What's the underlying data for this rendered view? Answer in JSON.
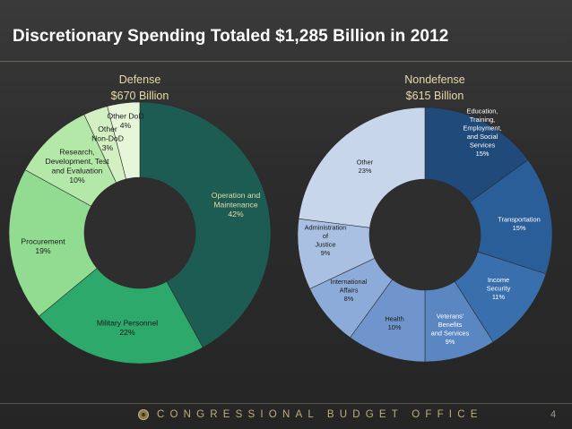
{
  "title": "Discretionary Spending Totaled $1,285 Billion in 2012",
  "footer": {
    "organization": "CONGRESSIONAL BUDGET OFFICE",
    "page_number": "4"
  },
  "colors": {
    "background": "#2b2b2b",
    "title": "#ffffff",
    "heading": "#e8d9a6",
    "footer_text": "#bfae7a"
  },
  "chart_data": [
    {
      "type": "pie",
      "donut": true,
      "heading": [
        "Defense",
        "$670 Billion"
      ],
      "slices": [
        {
          "label": [
            "Operation and",
            "Maintenance"
          ],
          "pct_label": "42%",
          "value": 42,
          "color": "#1d5c52",
          "text_color": "#e8d9a6"
        },
        {
          "label": [
            "Military Personnel"
          ],
          "pct_label": "22%",
          "value": 22,
          "color": "#2da96b",
          "text_color": "#1a1a1a"
        },
        {
          "label": [
            "Procurement"
          ],
          "pct_label": "19%",
          "value": 19,
          "color": "#92dc92",
          "text_color": "#1a1a1a"
        },
        {
          "label": [
            "Research,",
            "Development, Test",
            "and Evaluation"
          ],
          "pct_label": "10%",
          "value": 10,
          "color": "#b4e8a8",
          "text_color": "#1a1a1a"
        },
        {
          "label": [
            "Other",
            "Non-DoD"
          ],
          "pct_label": "3%",
          "value": 3,
          "color": "#d2f0c2",
          "text_color": "#1a1a1a"
        },
        {
          "label": [
            "Other DoD"
          ],
          "pct_label": "4%",
          "value": 4,
          "color": "#e6f6d8",
          "text_color": "#1a1a1a"
        }
      ]
    },
    {
      "type": "pie",
      "donut": true,
      "heading": [
        "Nondefense",
        "$615 Billion"
      ],
      "slices": [
        {
          "label": [
            "Education,",
            "Training,",
            "Employment,",
            "and Social",
            "Services"
          ],
          "pct_label": "15%",
          "value": 15,
          "color": "#1f4a7a",
          "text_color": "#ffffff"
        },
        {
          "label": [
            "Transportation"
          ],
          "pct_label": "15%",
          "value": 15,
          "color": "#2a5e98",
          "text_color": "#ffffff"
        },
        {
          "label": [
            "Income",
            "Security"
          ],
          "pct_label": "11%",
          "value": 11,
          "color": "#3a6fae",
          "text_color": "#ffffff"
        },
        {
          "label": [
            "Veterans'",
            "Benefits",
            "and Services"
          ],
          "pct_label": "9%",
          "value": 9,
          "color": "#5a86c2",
          "text_color": "#ffffff"
        },
        {
          "label": [
            "Health"
          ],
          "pct_label": "10%",
          "value": 10,
          "color": "#6f95cc",
          "text_color": "#1a1a1a"
        },
        {
          "label": [
            "International",
            "Affairs"
          ],
          "pct_label": "8%",
          "value": 8,
          "color": "#8dabd8",
          "text_color": "#1a1a1a"
        },
        {
          "label": [
            "Administration",
            "of",
            "Justice"
          ],
          "pct_label": "9%",
          "value": 9,
          "color": "#a9c0e2",
          "text_color": "#1a1a1a"
        },
        {
          "label": [
            "Other"
          ],
          "pct_label": "23%",
          "value": 23,
          "color": "#c8d6ec",
          "text_color": "#1a1a1a"
        }
      ]
    }
  ]
}
